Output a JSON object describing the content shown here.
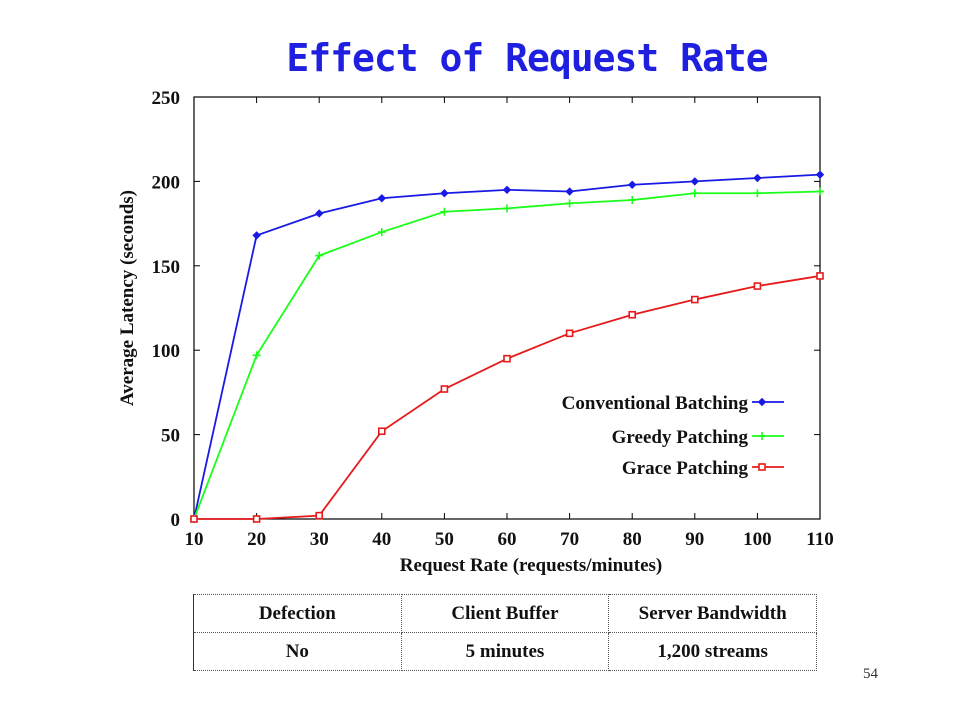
{
  "slide": {
    "title": "Effect of Request Rate",
    "page_number": "54"
  },
  "chart_data": {
    "type": "line",
    "title": "Effect of Request Rate",
    "xlabel": "Request Rate (requests/minutes)",
    "ylabel": "Average Latency (seconds)",
    "xlim": [
      10,
      110
    ],
    "ylim": [
      0,
      250
    ],
    "x_ticks": [
      10,
      20,
      30,
      40,
      50,
      60,
      70,
      80,
      90,
      100,
      110
    ],
    "y_ticks": [
      0,
      50,
      100,
      150,
      200,
      250
    ],
    "x": [
      10,
      20,
      30,
      40,
      50,
      60,
      70,
      80,
      90,
      100,
      110
    ],
    "legend_position": "bottom-right",
    "grid": false,
    "series": [
      {
        "name": "Conventional Batching",
        "color": "#1a1ae6",
        "marker": "diamond",
        "values": [
          0,
          168,
          181,
          190,
          193,
          195,
          194,
          198,
          200,
          202,
          204
        ]
      },
      {
        "name": "Greedy Patching",
        "color": "#1aff1a",
        "marker": "plus",
        "values": [
          0,
          97,
          156,
          170,
          182,
          184,
          187,
          189,
          193,
          193,
          194
        ]
      },
      {
        "name": "Grace Patching",
        "color": "#e61a1a",
        "marker": "square",
        "values": [
          0,
          0,
          2,
          52,
          77,
          95,
          110,
          121,
          130,
          138,
          144
        ]
      }
    ]
  },
  "table": {
    "headers": [
      "Defection",
      "Client Buffer",
      "Server Bandwidth"
    ],
    "rows": [
      [
        "No",
        "5 minutes",
        "1,200 streams"
      ]
    ]
  }
}
